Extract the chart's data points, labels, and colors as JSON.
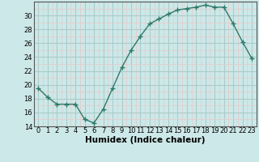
{
  "x": [
    0,
    1,
    2,
    3,
    4,
    5,
    6,
    7,
    8,
    9,
    10,
    11,
    12,
    13,
    14,
    15,
    16,
    17,
    18,
    19,
    20,
    21,
    22,
    23
  ],
  "y": [
    19.5,
    18.2,
    17.2,
    17.2,
    17.2,
    15.0,
    14.5,
    16.5,
    19.5,
    22.5,
    25.0,
    27.0,
    28.8,
    29.5,
    30.2,
    30.8,
    31.0,
    31.2,
    31.5,
    31.2,
    31.2,
    28.8,
    26.2,
    23.8
  ],
  "xlabel": "Humidex (Indice chaleur)",
  "ylim": [
    14,
    32
  ],
  "xlim": [
    -0.5,
    23.5
  ],
  "yticks": [
    14,
    16,
    18,
    20,
    22,
    24,
    26,
    28,
    30
  ],
  "xticks": [
    0,
    1,
    2,
    3,
    4,
    5,
    6,
    7,
    8,
    9,
    10,
    11,
    12,
    13,
    14,
    15,
    16,
    17,
    18,
    19,
    20,
    21,
    22,
    23
  ],
  "xtick_labels": [
    "0",
    "1",
    "2",
    "3",
    "4",
    "5",
    "6",
    "7",
    "8",
    "9",
    "10",
    "11",
    "12",
    "13",
    "14",
    "15",
    "16",
    "17",
    "18",
    "19",
    "20",
    "21",
    "22",
    "23"
  ],
  "line_color": "#2d7a6a",
  "marker": "+",
  "marker_size": 4,
  "marker_lw": 1.0,
  "background_color": "#cde8e8",
  "grid_major_color": "#aacccc",
  "grid_minor_color": "#e8c8c8",
  "line_width": 1.0,
  "xlabel_fontsize": 7.5,
  "tick_fontsize": 6.0
}
